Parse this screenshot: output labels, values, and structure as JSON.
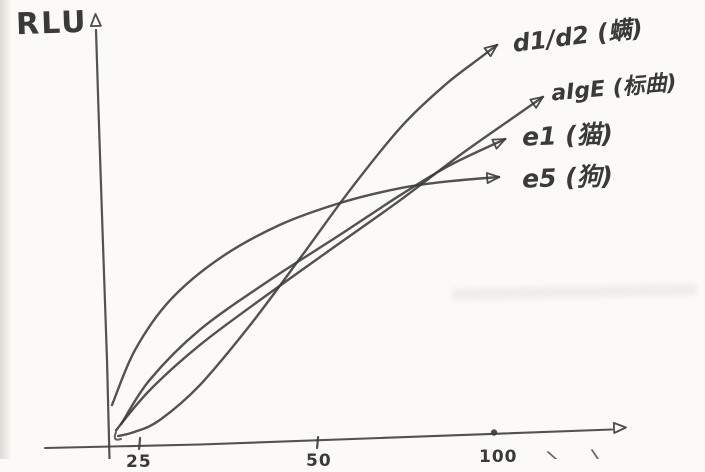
{
  "page": {
    "background": "#fbfaf7",
    "pencil_color": "#3a3a3a"
  },
  "chart_data": {
    "type": "line",
    "title": "",
    "xlabel": "",
    "ylabel": "RLU",
    "style": "hand-drawn pencil sketch",
    "legend_position": "labels at arrow tips, upper right",
    "y_axis": {
      "label": "RLU",
      "ticks": [],
      "note": "no numeric y scale shown; relative light units"
    },
    "x_axis": {
      "ticks": [
        {
          "label": "25",
          "fx": 0.059,
          "marker": "tick"
        },
        {
          "label": "50",
          "fx": 0.408,
          "marker": "tick"
        },
        {
          "label": "100",
          "fx": 0.753,
          "marker": "dot"
        }
      ],
      "note": "tick labels clipped at bottom edge of screenshot; spacing suggests doubling (log) scale"
    },
    "series": [
      {
        "name": "d1/d2 (螨)",
        "code": "d1/d2",
        "shape": "flat start then steepest rise, highest at right",
        "points": [
          [
            0.016,
            0.017
          ],
          [
            0.049,
            0.027
          ],
          [
            0.098,
            0.056
          ],
          [
            0.176,
            0.14
          ],
          [
            0.275,
            0.286
          ],
          [
            0.373,
            0.448
          ],
          [
            0.471,
            0.613
          ],
          [
            0.569,
            0.763
          ],
          [
            0.657,
            0.867
          ],
          [
            0.725,
            0.932
          ],
          [
            0.759,
            0.964
          ]
        ]
      },
      {
        "name": "aIgE (标曲)",
        "code": "aIgE",
        "shape": "steady nearly-linear rise, second highest at right",
        "points": [
          [
            0.012,
            0.031
          ],
          [
            0.078,
            0.128
          ],
          [
            0.176,
            0.237
          ],
          [
            0.294,
            0.346
          ],
          [
            0.431,
            0.467
          ],
          [
            0.569,
            0.588
          ],
          [
            0.686,
            0.697
          ],
          [
            0.784,
            0.782
          ],
          [
            0.849,
            0.838
          ]
        ]
      },
      {
        "name": "e1 (猫)",
        "code": "e1",
        "shape": "concave rise, flattening toward right",
        "points": [
          [
            0.022,
            0.046
          ],
          [
            0.078,
            0.153
          ],
          [
            0.176,
            0.274
          ],
          [
            0.314,
            0.395
          ],
          [
            0.451,
            0.504
          ],
          [
            0.569,
            0.6
          ],
          [
            0.667,
            0.673
          ],
          [
            0.775,
            0.736
          ]
        ]
      },
      {
        "name": "e5 (狗)",
        "code": "e5",
        "shape": "steep early rise then strong plateau, lowest at right",
        "points": [
          [
            0.004,
            0.092
          ],
          [
            0.049,
            0.225
          ],
          [
            0.118,
            0.346
          ],
          [
            0.216,
            0.448
          ],
          [
            0.333,
            0.528
          ],
          [
            0.451,
            0.581
          ],
          [
            0.569,
            0.617
          ],
          [
            0.667,
            0.634
          ],
          [
            0.763,
            0.644
          ]
        ]
      }
    ]
  }
}
